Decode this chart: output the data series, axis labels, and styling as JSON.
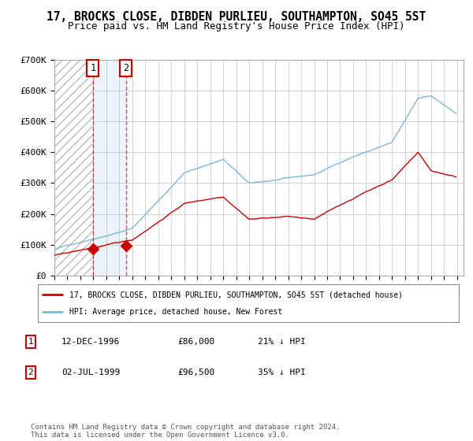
{
  "title": "17, BROCKS CLOSE, DIBDEN PURLIEU, SOUTHAMPTON, SO45 5ST",
  "subtitle": "Price paid vs. HM Land Registry's House Price Index (HPI)",
  "title_fontsize": 10.5,
  "subtitle_fontsize": 9,
  "ylim": [
    0,
    700000
  ],
  "yticks": [
    0,
    100000,
    200000,
    300000,
    400000,
    500000,
    600000,
    700000
  ],
  "ytick_labels": [
    "£0",
    "£100K",
    "£200K",
    "£300K",
    "£400K",
    "£500K",
    "£600K",
    "£700K"
  ],
  "hpi_color": "#7ab8d9",
  "price_color": "#cc0000",
  "background_color": "#ffffff",
  "legend_label_red": "17, BROCKS CLOSE, DIBDEN PURLIEU, SOUTHAMPTON, SO45 5ST (detached house)",
  "legend_label_blue": "HPI: Average price, detached house, New Forest",
  "purchase1_date": "12-DEC-1996",
  "purchase1_price": 86000,
  "purchase1_label": "1",
  "purchase1_pct": "21% ↓ HPI",
  "purchase2_date": "02-JUL-1999",
  "purchase2_price": 96500,
  "purchase2_label": "2",
  "purchase2_pct": "35% ↓ HPI",
  "footer": "Contains HM Land Registry data © Crown copyright and database right 2024.\nThis data is licensed under the Open Government Licence v3.0.",
  "purchase1_year": 1996.958,
  "purchase2_year": 1999.5,
  "xmin": 1994.0,
  "xmax": 2025.5,
  "xticks": [
    1994,
    1995,
    1996,
    1997,
    1998,
    1999,
    2000,
    2001,
    2002,
    2003,
    2004,
    2005,
    2006,
    2007,
    2008,
    2009,
    2010,
    2011,
    2012,
    2013,
    2014,
    2015,
    2016,
    2017,
    2018,
    2019,
    2020,
    2021,
    2022,
    2023,
    2024,
    2025
  ]
}
